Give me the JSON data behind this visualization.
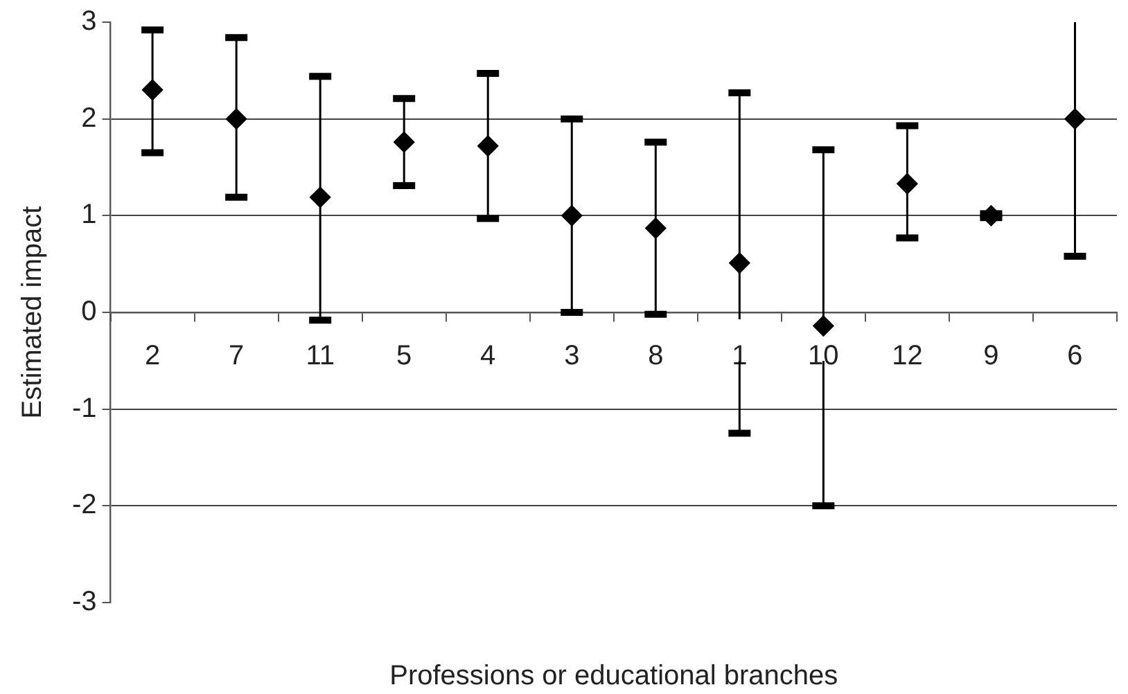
{
  "chart_data": {
    "type": "scatter",
    "xlabel": "Professions or educational branches",
    "ylabel": "Estimated impact",
    "categories": [
      "2",
      "7",
      "11",
      "5",
      "4",
      "3",
      "8",
      "1",
      "10",
      "12",
      "9",
      "6"
    ],
    "series": [
      {
        "color": "#000000",
        "values": [
          2.3,
          2.0,
          1.19,
          1.76,
          1.72,
          1.0,
          0.87,
          0.51,
          -0.14,
          1.33,
          1.0,
          2.0
        ],
        "errors": [
          [
            1.65,
            2.92
          ],
          [
            1.19,
            2.84
          ],
          [
            -0.08,
            2.44
          ],
          [
            1.31,
            2.21
          ],
          [
            0.97,
            2.47
          ],
          [
            0.0,
            2.0
          ],
          [
            -0.02,
            1.76
          ],
          [
            -1.25,
            2.27
          ],
          [
            -2.0,
            1.68
          ],
          [
            0.77,
            1.93
          ],
          [
            0.98,
            1.02
          ],
          [
            0.58,
            3.0
          ]
        ]
      }
    ],
    "ylim": [
      -3,
      3
    ],
    "yticks": [
      -3,
      -2,
      -1,
      0,
      1,
      2,
      3
    ],
    "grid": "y",
    "legend": false,
    "marker": "diamond"
  }
}
